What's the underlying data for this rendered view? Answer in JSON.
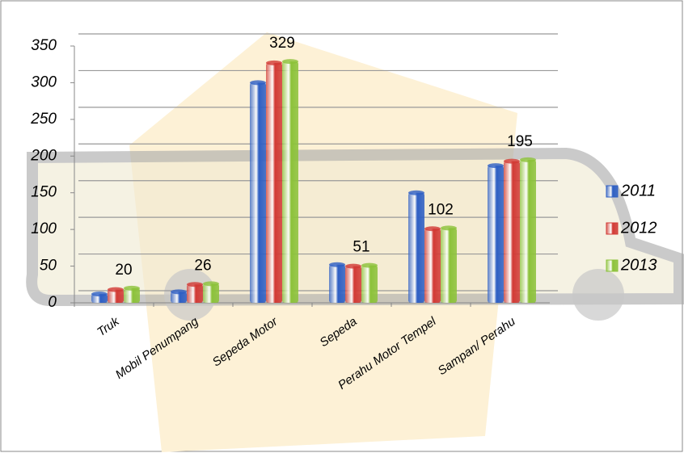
{
  "chart_data": {
    "type": "bar",
    "categories": [
      "Truk",
      "Mobil  Penumpang",
      "Sepeda Motor",
      "Sepeda",
      "Perahu Motor Tempel",
      "Sampan/ Perahu"
    ],
    "series": [
      {
        "name": "2011",
        "color": "#2e5fc4",
        "values": [
          12,
          15,
          300,
          52,
          150,
          187
        ]
      },
      {
        "name": "2012",
        "color": "#d23a35",
        "values": [
          18,
          25,
          327,
          50,
          101,
          193
        ]
      },
      {
        "name": "2013",
        "color": "#8cc23a",
        "values": [
          20,
          26,
          329,
          51,
          102,
          195
        ]
      }
    ],
    "ylim": [
      0,
      350
    ],
    "yticks": [
      0,
      50,
      100,
      150,
      200,
      250,
      300,
      350
    ],
    "grid": true
  }
}
